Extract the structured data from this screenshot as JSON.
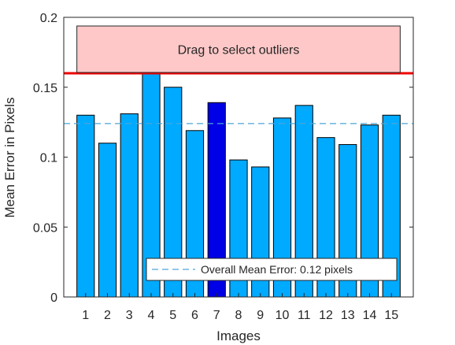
{
  "chart_data": {
    "type": "bar",
    "xlabel": "Images",
    "ylabel": "Mean Error in Pixels",
    "ylim": [
      0,
      0.2
    ],
    "yticks": [
      {
        "value": 0,
        "label": "0"
      },
      {
        "value": 0.05,
        "label": "0.05"
      },
      {
        "value": 0.1,
        "label": "0.1"
      },
      {
        "value": 0.15,
        "label": "0.15"
      },
      {
        "value": 0.2,
        "label": "0.2"
      }
    ],
    "categories": [
      "1",
      "2",
      "3",
      "4",
      "5",
      "6",
      "7",
      "8",
      "9",
      "10",
      "11",
      "12",
      "13",
      "14",
      "15"
    ],
    "values": [
      0.13,
      0.11,
      0.131,
      0.16,
      0.15,
      0.119,
      0.139,
      0.098,
      0.093,
      0.128,
      0.137,
      0.114,
      0.109,
      0.123,
      0.13
    ],
    "highlighted_index": 6,
    "bar_color": "#00aaff",
    "highlight_color": "#0000e6",
    "mean_error": 0.124,
    "mean_line_color": "#4da6d9",
    "threshold": 0.16,
    "threshold_color": "#ee0000",
    "outlier_box_label": "Drag to select outliers",
    "outlier_box_fill": "#ffc8c8",
    "legend_label": "Overall Mean Error: 0.12 pixels",
    "legend_placement": "bottom-right",
    "grid": false
  }
}
